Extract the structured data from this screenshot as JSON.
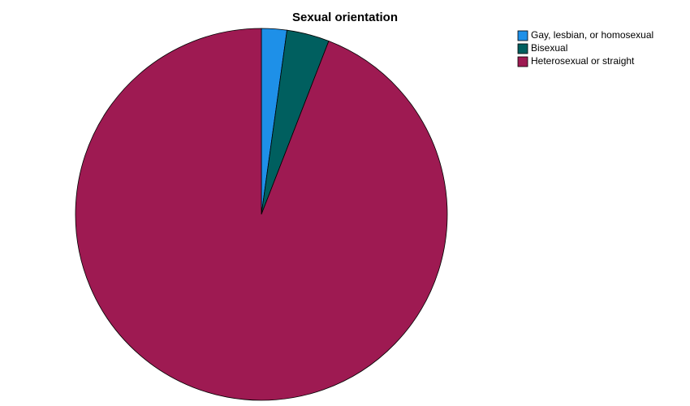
{
  "chart_data": {
    "type": "pie",
    "title": "Sexual orientation",
    "categories": [
      "Gay, lesbian, or homosexual",
      "Bisexual",
      "Heterosexual or straight"
    ],
    "values": [
      2.2,
      3.7,
      94.1
    ],
    "colors": [
      "#1e90e8",
      "#005f5f",
      "#9e1a52"
    ],
    "legend": "top-right"
  }
}
